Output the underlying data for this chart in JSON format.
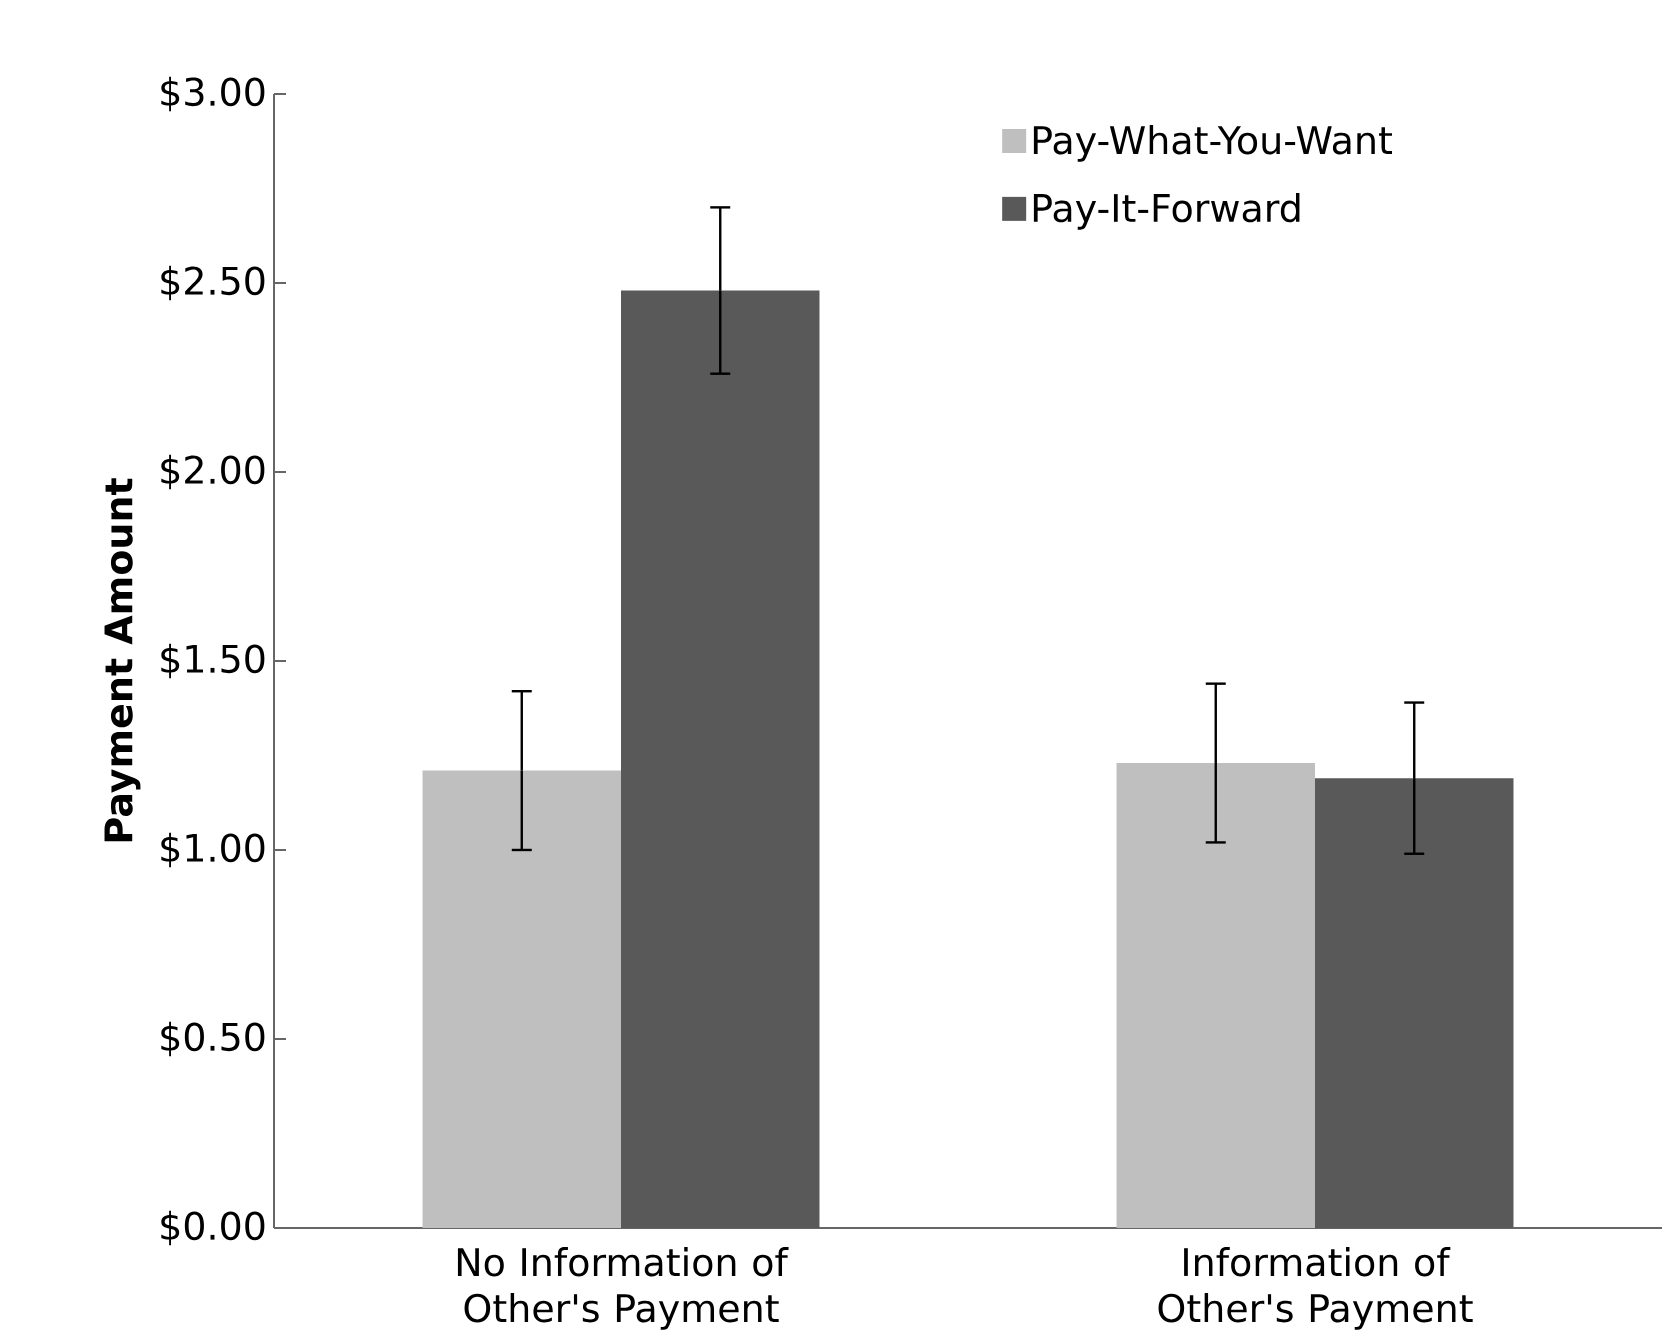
{
  "chart_data": {
    "type": "bar",
    "ylabel": "Payment Amount",
    "categories": [
      "No Information of Other's Payment",
      "Information of Other's Payment"
    ],
    "series": [
      {
        "name": "Pay-What-You-Want",
        "color": "#bfbfbf",
        "values": [
          1.21,
          1.23
        ],
        "errors": [
          0.21,
          0.21
        ]
      },
      {
        "name": "Pay-It-Forward",
        "color": "#595959",
        "values": [
          2.48,
          1.19
        ],
        "errors": [
          0.22,
          0.2
        ]
      }
    ],
    "ylim": [
      0,
      3
    ],
    "yticks": [
      {
        "value": 0,
        "label": "$0.00"
      },
      {
        "value": 0.5,
        "label": "$0.50"
      },
      {
        "value": 1,
        "label": "$1.00"
      },
      {
        "value": 1.5,
        "label": "$1.50"
      },
      {
        "value": 2,
        "label": "$2.00"
      },
      {
        "value": 2.5,
        "label": "$2.50"
      },
      {
        "value": 3,
        "label": "$3.00"
      }
    ],
    "grid": false,
    "legend": "top right"
  }
}
